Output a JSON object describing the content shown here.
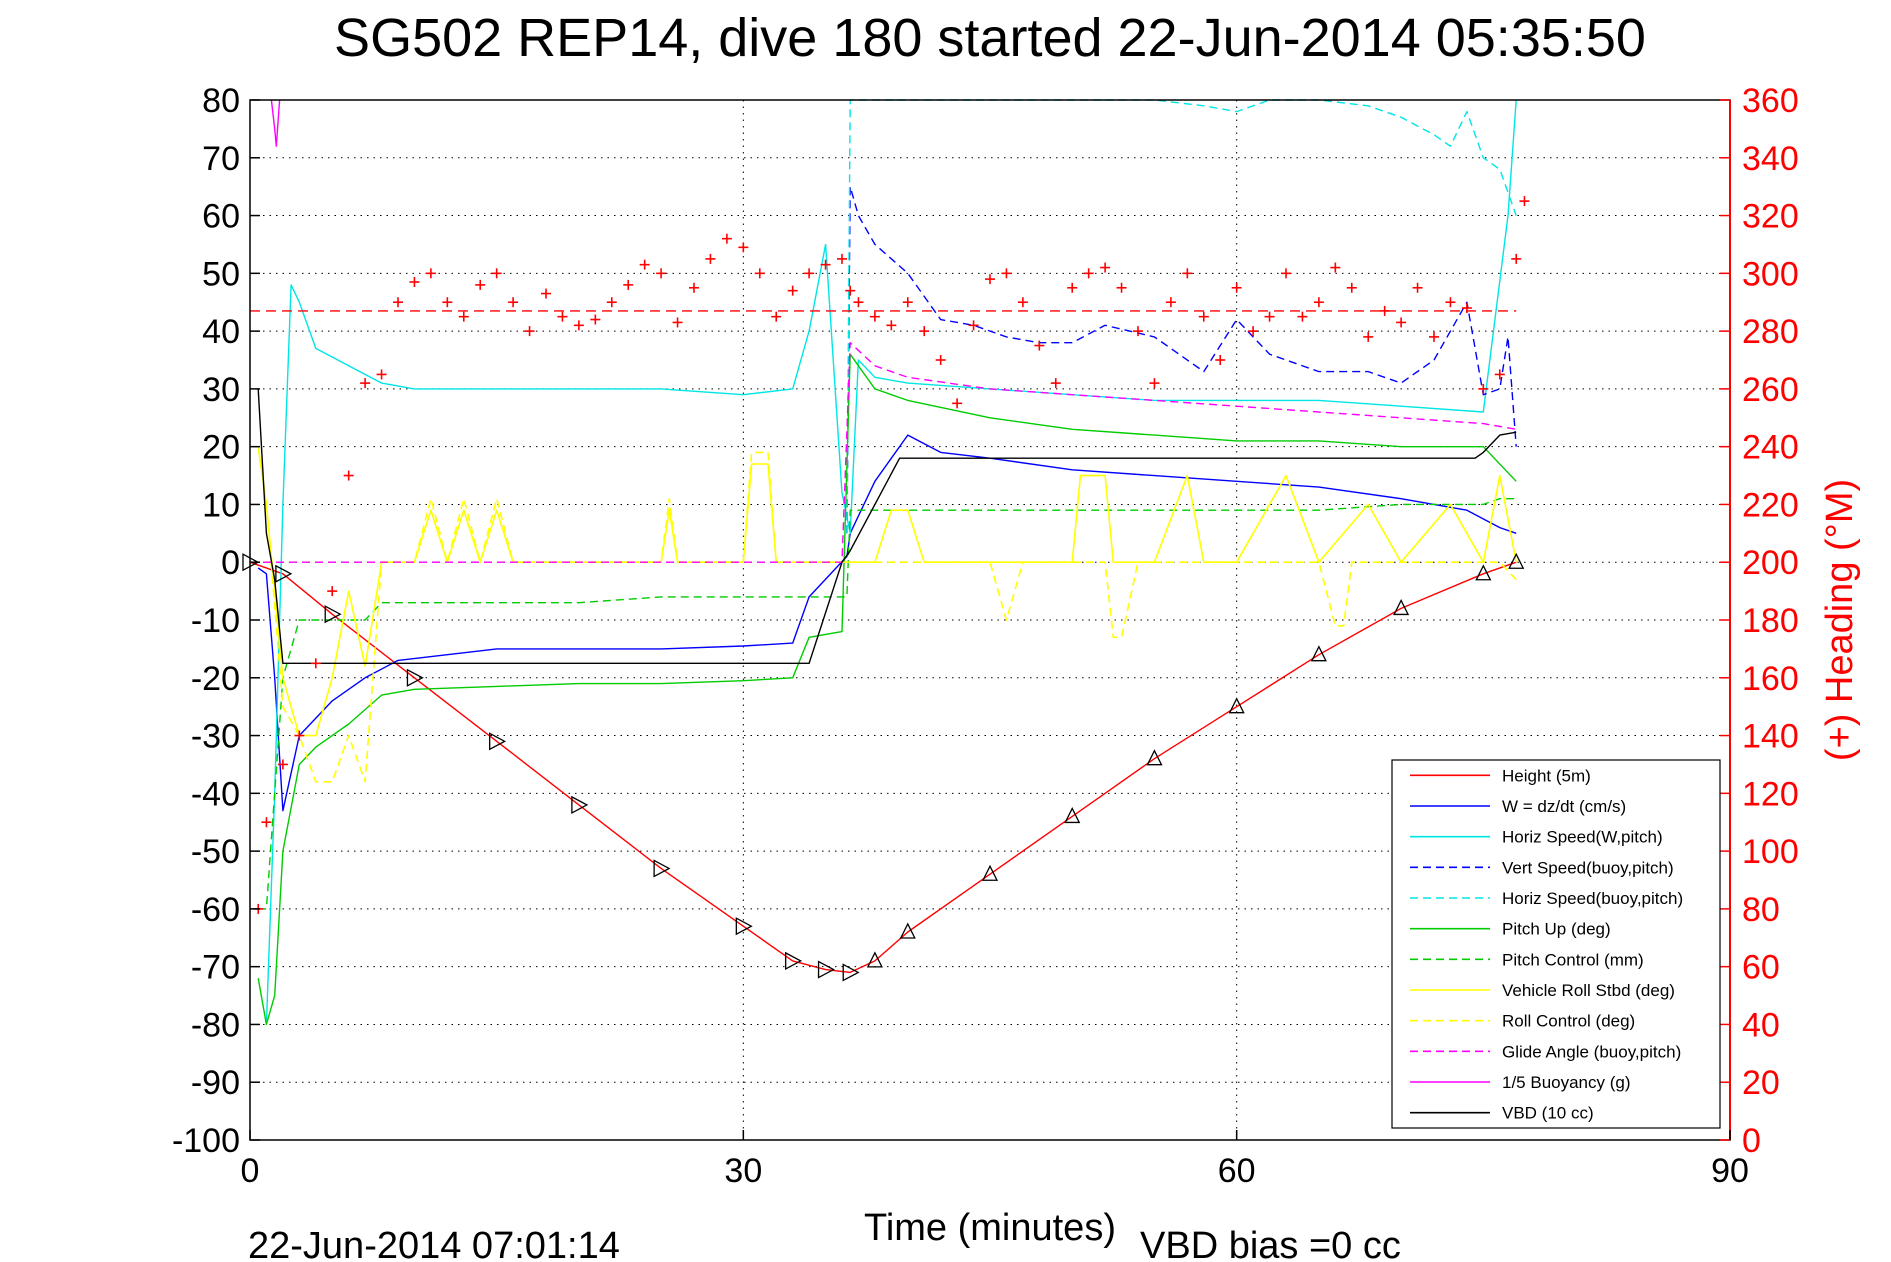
{
  "chart_data": {
    "type": "line",
    "title": "SG502 REP14, dive 180 started 22-Jun-2014 05:35:50",
    "xlabel": "Time (minutes)",
    "ylabel_right": "(+) Heading (°M)",
    "footer_date": "22-Jun-2014 07:01:14",
    "footer_note": "VBD bias =0 cc",
    "xlim": [
      0,
      90
    ],
    "ylim": [
      -100,
      80
    ],
    "ylim_right": [
      0,
      360
    ],
    "x_ticks": [
      "0",
      "30",
      "60",
      "90"
    ],
    "y_ticks": [
      "80",
      "70",
      "60",
      "50",
      "40",
      "30",
      "20",
      "10",
      "0",
      "-10",
      "-20",
      "-30",
      "-40",
      "-50",
      "-60",
      "-70",
      "-80",
      "-90",
      "-100"
    ],
    "y_right_ticks": [
      "360",
      "340",
      "320",
      "300",
      "280",
      "260",
      "240",
      "220",
      "200",
      "180",
      "160",
      "140",
      "120",
      "100",
      "80",
      "60",
      "40",
      "20",
      "0"
    ],
    "grid": true,
    "legend_position": "bottom-right",
    "colors": {
      "height": "#ff0000",
      "w": "#0000ff",
      "horiz_speed_w": "#00e5e5",
      "vert_speed_buoy": "#0000ff",
      "horiz_speed_buoy": "#00e5e5",
      "pitch_up": "#00cc00",
      "pitch_control": "#00cc00",
      "roll": "#ffff00",
      "roll_control": "#ffff00",
      "glide_angle": "#ff00ff",
      "buoyancy": "#ff00ff",
      "vbd": "#000000",
      "heading": "#ff0000"
    },
    "legend": [
      {
        "label": "Height (5m)",
        "color": "#ff0000",
        "dash": false
      },
      {
        "label": "W = dz/dt (cm/s)",
        "color": "#0000ff",
        "dash": false
      },
      {
        "label": "Horiz Speed(W,pitch)",
        "color": "#00e5e5",
        "dash": false
      },
      {
        "label": "Vert Speed(buoy,pitch)",
        "color": "#0000ff",
        "dash": true
      },
      {
        "label": "Horiz Speed(buoy,pitch)",
        "color": "#00e5e5",
        "dash": true
      },
      {
        "label": "Pitch Up (deg)",
        "color": "#00cc00",
        "dash": false
      },
      {
        "label": "Pitch Control (mm)",
        "color": "#00cc00",
        "dash": true
      },
      {
        "label": "Vehicle Roll Stbd (deg)",
        "color": "#ffff00",
        "dash": false
      },
      {
        "label": "Roll Control (deg)",
        "color": "#ffff00",
        "dash": true
      },
      {
        "label": "Glide Angle (buoy,pitch)",
        "color": "#ff00ff",
        "dash": true
      },
      {
        "label": "1/5 Buoyancy (g)",
        "color": "#ff00ff",
        "dash": false
      },
      {
        "label": "VBD (10 cc)",
        "color": "#000000",
        "dash": false
      }
    ],
    "series": [
      {
        "name": "Height (5m)",
        "x": [
          0,
          2,
          5,
          10,
          15,
          20,
          25,
          30,
          33,
          35,
          36.5,
          38,
          40,
          45,
          50,
          55,
          60,
          65,
          70,
          75,
          77
        ],
        "y": [
          0,
          -2,
          -9,
          -20,
          -31,
          -42,
          -53,
          -63,
          -69,
          -70.5,
          -71,
          -69,
          -64,
          -54,
          -44,
          -34,
          -25,
          -16,
          -8,
          -2,
          0
        ]
      },
      {
        "name": "W = dz/dt (cm/s)",
        "x": [
          0.5,
          1,
          1.5,
          2,
          3,
          5,
          7,
          9,
          12,
          15,
          20,
          25,
          30,
          33,
          34,
          36.3,
          36.5,
          38,
          40,
          42,
          45,
          50,
          55,
          60,
          65,
          70,
          74,
          76,
          77
        ],
        "y": [
          -1,
          -2,
          -20,
          -43,
          -30,
          -24,
          -20,
          -17,
          -16,
          -15,
          -15,
          -15,
          -14.5,
          -14,
          -6,
          1,
          5,
          14,
          22,
          19,
          18,
          16,
          15,
          14,
          13,
          11,
          9,
          6,
          5
        ]
      },
      {
        "name": "Horiz Speed(W,pitch)",
        "x": [
          1,
          1.5,
          2,
          2.5,
          3,
          4,
          6,
          8,
          10,
          15,
          20,
          25,
          30,
          33,
          34,
          35,
          36,
          36.5,
          37,
          38,
          40,
          45,
          50,
          55,
          60,
          65,
          70,
          75,
          76.5,
          77
        ],
        "y": [
          -80,
          -40,
          10,
          48,
          45,
          37,
          34,
          31,
          30,
          30,
          30,
          30,
          29,
          30,
          40,
          55,
          12,
          5,
          35,
          32,
          31,
          30,
          29,
          28,
          28,
          28,
          27,
          26,
          60,
          80
        ]
      },
      {
        "name": "Vert Speed(buoy,pitch)",
        "x": [
          36.3,
          36.5,
          37,
          38,
          40,
          42,
          44,
          46,
          48,
          50,
          52,
          55,
          58,
          60,
          62,
          65,
          68,
          70,
          72,
          74,
          75,
          76,
          76.5,
          77
        ],
        "y": [
          5,
          65,
          60,
          55,
          50,
          42,
          41,
          39,
          38,
          38,
          41,
          39,
          33,
          42,
          36,
          33,
          33,
          31,
          35,
          45,
          29,
          30,
          39,
          20
        ]
      },
      {
        "name": "Horiz Speed(buoy,pitch)",
        "x": [
          36.3,
          36.5,
          37,
          38,
          40,
          45,
          50,
          55,
          58,
          60,
          62,
          65,
          68,
          70,
          72,
          73,
          74,
          75,
          76,
          77
        ],
        "y": [
          5,
          80,
          80,
          80,
          80,
          80,
          80,
          80,
          79,
          78,
          80,
          80,
          79,
          77,
          74,
          72,
          78,
          70,
          68,
          60
        ]
      },
      {
        "name": "Pitch Up (deg)",
        "x": [
          0.5,
          1,
          1.5,
          2,
          3,
          4,
          6,
          8,
          10,
          15,
          20,
          25,
          30,
          33,
          34,
          36,
          36.5,
          37,
          38,
          40,
          45,
          50,
          55,
          60,
          65,
          70,
          75,
          77
        ],
        "y": [
          -72,
          -80,
          -75,
          -50,
          -35,
          -32,
          -28,
          -23,
          -22,
          -21.5,
          -21,
          -21,
          -20.5,
          -20,
          -13,
          -12,
          36,
          34,
          30,
          28,
          25,
          23,
          22,
          21,
          21,
          20,
          20,
          14
        ]
      },
      {
        "name": "Pitch Control (mm)",
        "x": [
          0.5,
          1,
          2,
          3,
          5,
          7,
          8,
          10,
          15,
          20,
          25,
          30,
          34,
          36.3,
          36.5,
          38,
          40,
          45,
          50,
          55,
          60,
          65,
          70,
          75,
          76,
          77
        ],
        "y": [
          -60,
          -60,
          -20,
          -10,
          -10,
          -10,
          -7,
          -7,
          -7,
          -7,
          -6,
          -6,
          -6,
          -6,
          9,
          9,
          9,
          9,
          9,
          9,
          9,
          9,
          10,
          10,
          11,
          11
        ]
      },
      {
        "name": "Vehicle Roll Stbd (deg)",
        "x": [
          0.5,
          1,
          2,
          3,
          4,
          5,
          6,
          7,
          8,
          10,
          11,
          12,
          13,
          14,
          15,
          16,
          20,
          25,
          25.5,
          26,
          26.5,
          30,
          30.5,
          31.5,
          32,
          36,
          36.5,
          38,
          39,
          40,
          41,
          42,
          44,
          45,
          50,
          50.5,
          52,
          52.5,
          55,
          57,
          58,
          60,
          63,
          65,
          68,
          70,
          73,
          75,
          76,
          77
        ],
        "y": [
          20,
          10,
          -20,
          -30,
          -30,
          -20,
          -5,
          -18,
          0,
          0,
          9,
          0,
          9,
          0,
          9,
          0,
          0,
          0,
          9,
          0,
          0,
          0,
          17,
          17,
          0,
          0,
          0,
          0,
          9,
          9,
          0,
          0,
          0,
          0,
          0,
          15,
          15,
          0,
          0,
          15,
          0,
          0,
          15,
          0,
          10,
          0,
          10,
          0,
          15,
          0
        ]
      },
      {
        "name": "Roll Control (deg)",
        "x": [
          0.5,
          1,
          2,
          3,
          4,
          5,
          6,
          7,
          8,
          10,
          11,
          12,
          13,
          14,
          15,
          16,
          20,
          25,
          25.5,
          26,
          26.5,
          30,
          30.5,
          31.5,
          32,
          36,
          40,
          45,
          46,
          47,
          52,
          52.5,
          53,
          54,
          58,
          60,
          65,
          66,
          66.5,
          67,
          70,
          74,
          75,
          76,
          77
        ],
        "y": [
          20,
          10,
          -25,
          -30,
          -38,
          -38,
          -30,
          -38,
          0,
          0,
          11,
          0,
          11,
          0,
          11,
          0,
          0,
          0,
          11,
          0,
          0,
          0,
          19,
          19,
          0,
          0,
          0,
          0,
          -10,
          0,
          0,
          -13,
          -13,
          0,
          0,
          0,
          0,
          -11,
          -11,
          0,
          0,
          0,
          0,
          0,
          -3
        ]
      },
      {
        "name": "Glide Angle (buoy,pitch)",
        "x": [
          0,
          36,
          36.5,
          38,
          40,
          45,
          50,
          55,
          60,
          65,
          70,
          75,
          77
        ],
        "y": [
          0,
          0,
          38,
          34,
          32,
          30,
          29,
          28,
          27,
          26,
          25,
          24,
          23
        ]
      },
      {
        "name": "1/5 Buoyancy (g)",
        "x": [
          1.3,
          1.5,
          1.6,
          1.8
        ],
        "y": [
          80,
          75,
          72,
          80
        ]
      },
      {
        "name": "VBD (10 cc)",
        "x": [
          0.5,
          1,
          1.5,
          2,
          5,
          10,
          20,
          30,
          34,
          36,
          36.5,
          39.5,
          40,
          45,
          50,
          55,
          60,
          65,
          70,
          74.5,
          75,
          76,
          77
        ],
        "y": [
          30,
          5,
          -3,
          -17.5,
          -17.5,
          -17.5,
          -17.5,
          -17.5,
          -17.5,
          0,
          2,
          18,
          18,
          18,
          18,
          18,
          18,
          18,
          18,
          18,
          19,
          22,
          22.5
        ]
      },
      {
        "name": "heading_reference",
        "x": [
          0,
          77
        ],
        "y": [
          287,
          287
        ]
      },
      {
        "name": "heading",
        "x": [
          0.5,
          1,
          2,
          3,
          4,
          5,
          6,
          7,
          8,
          9,
          10,
          11,
          12,
          13,
          14,
          15,
          16,
          17,
          18,
          19,
          20,
          21,
          22,
          23,
          24,
          25,
          26,
          27,
          28,
          29,
          30,
          31,
          32,
          33,
          34,
          35,
          36,
          36.5,
          37,
          38,
          39,
          40,
          41,
          42,
          43,
          44,
          45,
          46,
          47,
          48,
          49,
          50,
          51,
          52,
          53,
          54,
          55,
          56,
          57,
          58,
          59,
          60,
          61,
          62,
          63,
          64,
          65,
          66,
          67,
          68,
          69,
          70,
          71,
          72,
          73,
          74,
          75,
          76,
          77,
          77.5
        ],
        "y": [
          80,
          110,
          130,
          140,
          165,
          190,
          230,
          262,
          265,
          290,
          297,
          300,
          290,
          285,
          296,
          300,
          290,
          280,
          293,
          285,
          282,
          284,
          290,
          296,
          303,
          300,
          283,
          295,
          305,
          312,
          309,
          300,
          285,
          294,
          300,
          303,
          305,
          294,
          290,
          285,
          282,
          290,
          280,
          270,
          255,
          282,
          298,
          300,
          290,
          275,
          262,
          295,
          300,
          302,
          295,
          280,
          262,
          290,
          300,
          285,
          270,
          295,
          280,
          285,
          300,
          285,
          290,
          302,
          295,
          278,
          287,
          283,
          295,
          278,
          290,
          288,
          260,
          265,
          305,
          325
        ]
      }
    ]
  }
}
